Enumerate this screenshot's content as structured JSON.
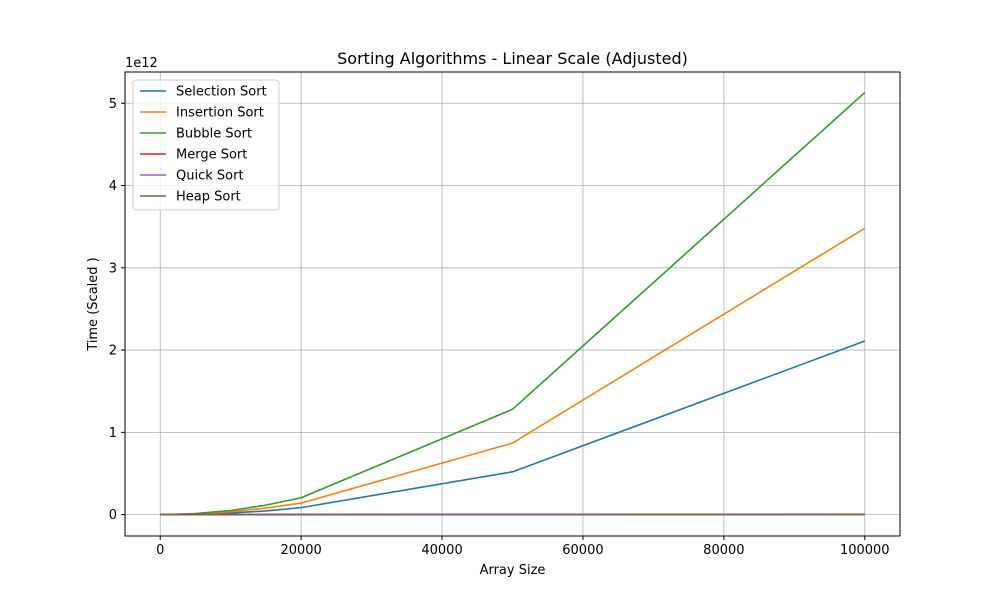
{
  "chart_data": {
    "type": "line",
    "title": "Sorting Algorithms - Linear Scale (Adjusted)",
    "xlabel": "Array Size",
    "ylabel": "Time (Scaled )",
    "y_offset_text": "1e12",
    "xlim": [
      -5000,
      105000
    ],
    "ylim": [
      -0.26,
      5.38
    ],
    "x_ticks": [
      0,
      20000,
      40000,
      60000,
      80000,
      100000
    ],
    "x_tick_labels": [
      "0",
      "20000",
      "40000",
      "60000",
      "80000",
      "100000"
    ],
    "y_ticks": [
      0,
      1,
      2,
      3,
      4,
      5
    ],
    "y_tick_labels": [
      "0",
      "1",
      "2",
      "3",
      "4",
      "5"
    ],
    "grid": true,
    "legend_position": "upper-left",
    "x": [
      0,
      1000,
      5000,
      10000,
      15000,
      20000,
      50000,
      100000
    ],
    "series": [
      {
        "name": "Selection Sort",
        "color": "#1f77b4",
        "values": [
          0,
          0.0002,
          0.005,
          0.02,
          0.045,
          0.085,
          0.52,
          2.11
        ]
      },
      {
        "name": "Insertion Sort",
        "color": "#ff7f0e",
        "values": [
          0,
          0.0003,
          0.008,
          0.035,
          0.08,
          0.14,
          0.87,
          3.48
        ]
      },
      {
        "name": "Bubble Sort",
        "color": "#2ca02c",
        "values": [
          0,
          0.0005,
          0.013,
          0.05,
          0.115,
          0.205,
          1.28,
          5.13
        ]
      },
      {
        "name": "Merge Sort",
        "color": "#d62728",
        "values": [
          0,
          1e-05,
          7e-05,
          0.00015,
          0.00025,
          0.0004,
          0.0011,
          0.0024
        ]
      },
      {
        "name": "Quick Sort",
        "color": "#9467bd",
        "values": [
          0,
          1e-05,
          6e-05,
          0.00013,
          0.00021,
          0.0003,
          0.0009,
          0.002
        ]
      },
      {
        "name": "Heap Sort",
        "color": "#8c564b",
        "values": [
          0,
          1e-05,
          8e-05,
          0.00018,
          0.0003,
          0.0005,
          0.0014,
          0.003
        ]
      }
    ]
  }
}
